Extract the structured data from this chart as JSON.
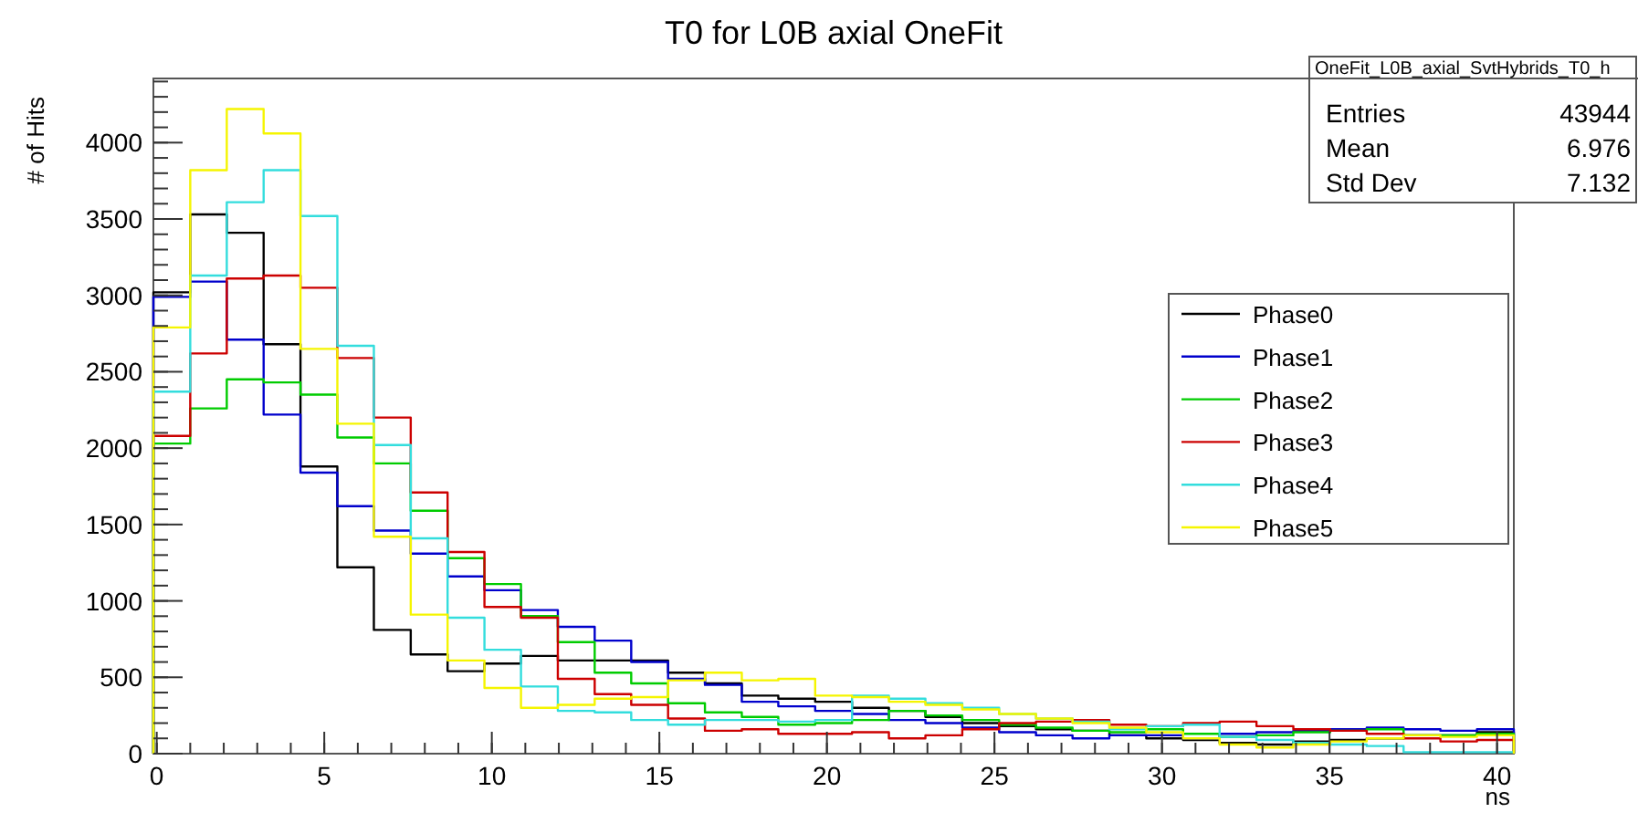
{
  "chart_data": {
    "type": "histogram",
    "title": "T0 for L0B axial OneFit",
    "xlabel": "ns",
    "ylabel": "# of Hits",
    "annotations": [
      "OneFit_L0B_axial_SvtHybrids_T0_h",
      "Entries",
      "43944",
      "Mean",
      "6.976",
      "Std Dev",
      "7.132"
    ],
    "bins": [
      -0.1,
      1.0,
      2.09,
      3.19,
      4.29,
      5.39,
      6.48,
      7.58,
      8.68,
      9.78,
      10.87,
      11.97,
      13.07,
      14.16,
      15.26,
      16.36,
      17.46,
      18.55,
      19.65,
      20.75,
      21.85,
      22.94,
      24.04,
      25.14,
      26.24,
      27.33,
      28.43,
      29.53,
      30.63,
      31.72,
      32.82,
      33.92,
      35.02,
      36.11,
      37.21,
      38.31,
      39.4,
      40.5
    ],
    "xlim": [
      -0.1,
      40.5
    ],
    "xticks": [
      0,
      5,
      10,
      15,
      20,
      25,
      30,
      35,
      40
    ],
    "ylim": [
      0,
      4420
    ],
    "yticks": [
      0,
      500,
      1000,
      1500,
      2000,
      2500,
      3000,
      3500,
      4000
    ],
    "legend": "right",
    "series": [
      {
        "name": "Phase0",
        "color": "#000000",
        "values": [
          3020,
          3530,
          3410,
          2680,
          1880,
          1220,
          810,
          650,
          540,
          590,
          640,
          610,
          610,
          610,
          530,
          460,
          380,
          360,
          340,
          300,
          280,
          240,
          200,
          180,
          160,
          150,
          120,
          100,
          90,
          70,
          60,
          80,
          90,
          100,
          120,
          120,
          140
        ]
      },
      {
        "name": "Phase1",
        "color": "#0000cc",
        "values": [
          2990,
          3090,
          2710,
          2220,
          1840,
          1620,
          1460,
          1310,
          1160,
          1070,
          940,
          830,
          740,
          600,
          490,
          450,
          340,
          310,
          280,
          260,
          220,
          200,
          170,
          140,
          120,
          100,
          120,
          120,
          100,
          130,
          140,
          150,
          160,
          170,
          160,
          150,
          160
        ]
      },
      {
        "name": "Phase2",
        "color": "#00cc00",
        "values": [
          2030,
          2260,
          2450,
          2430,
          2350,
          2070,
          1900,
          1590,
          1280,
          1110,
          900,
          730,
          530,
          460,
          330,
          270,
          240,
          190,
          200,
          220,
          280,
          250,
          220,
          190,
          170,
          150,
          140,
          160,
          130,
          110,
          120,
          140,
          150,
          160,
          120,
          120,
          130
        ]
      },
      {
        "name": "Phase3",
        "color": "#cc0000",
        "values": [
          2080,
          2620,
          3110,
          3130,
          3050,
          2590,
          2200,
          1710,
          1320,
          960,
          890,
          490,
          390,
          320,
          230,
          150,
          160,
          130,
          130,
          140,
          100,
          120,
          160,
          200,
          210,
          220,
          190,
          180,
          200,
          210,
          180,
          160,
          150,
          130,
          100,
          80,
          90
        ]
      },
      {
        "name": "Phase4",
        "color": "#33dddd",
        "values": [
          2370,
          3130,
          3610,
          3820,
          3520,
          2670,
          2020,
          1410,
          890,
          680,
          440,
          280,
          270,
          220,
          190,
          220,
          220,
          210,
          220,
          380,
          360,
          330,
          300,
          260,
          230,
          210,
          160,
          180,
          190,
          110,
          90,
          70,
          60,
          50,
          10,
          10,
          10
        ]
      },
      {
        "name": "Phase5",
        "color": "#f5f500",
        "values": [
          2790,
          3820,
          4220,
          4060,
          2650,
          2160,
          1420,
          910,
          610,
          430,
          300,
          320,
          360,
          370,
          480,
          530,
          480,
          490,
          380,
          370,
          340,
          320,
          290,
          260,
          230,
          200,
          170,
          140,
          100,
          60,
          40,
          60,
          80,
          100,
          120,
          110,
          120
        ]
      }
    ]
  }
}
